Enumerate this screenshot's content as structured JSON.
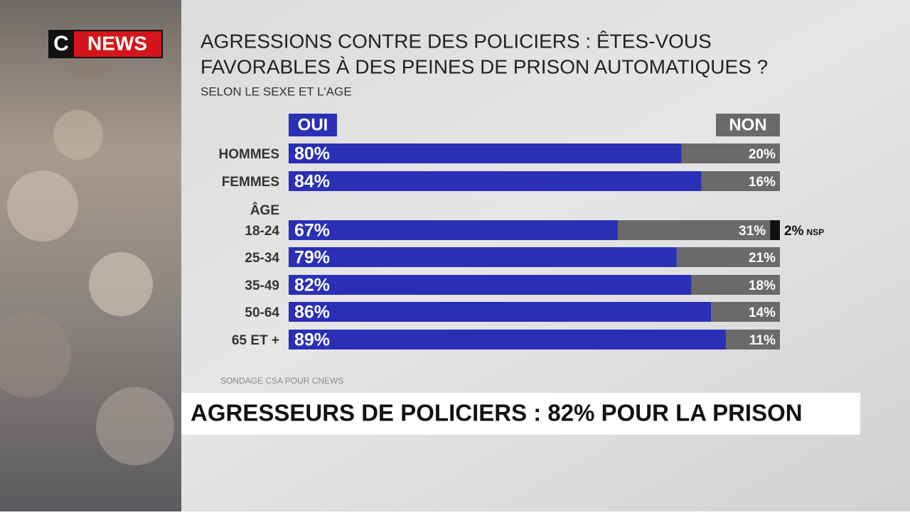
{
  "logo": {
    "c": "C",
    "news": "NEWS"
  },
  "banner": "AGRESSEURS DE POLICIERS : 82% POUR LA PRISON",
  "chart_data": {
    "type": "bar",
    "orientation": "horizontal",
    "stacked": true,
    "title": [
      "AGRESSIONS CONTRE DES POLICIERS : ÊTES-VOUS",
      "FAVORABLES À DES PEINES DE PRISON AUTOMATIQUES ?"
    ],
    "subtitle": "SELON LE SEXE ET L'AGE",
    "group_label": "ÂGE",
    "source": "SONDAGE CSA POUR CNEWS",
    "categories": [
      "HOMMES",
      "FEMMES",
      "18-24",
      "25-34",
      "35-49",
      "50-64",
      "65 ET +"
    ],
    "xlim": [
      0,
      100
    ],
    "series": [
      {
        "name": "OUI",
        "color": "#2a2fb6",
        "values": [
          80,
          84,
          67,
          79,
          82,
          86,
          89
        ],
        "value_labels": [
          "80%",
          "84%",
          "67%",
          "79%",
          "82%",
          "86%",
          "89%"
        ]
      },
      {
        "name": "NON",
        "color": "#6a6a6a",
        "values": [
          20,
          16,
          31,
          21,
          18,
          14,
          11
        ],
        "value_labels": [
          "20%",
          "16%",
          "31%",
          "21%",
          "18%",
          "14%",
          "11%"
        ]
      },
      {
        "name": "NSP",
        "color": "#111111",
        "values": [
          null,
          null,
          2,
          null,
          null,
          null,
          null
        ],
        "value_labels": [
          null,
          null,
          "2%",
          null,
          null,
          null,
          null
        ]
      }
    ]
  }
}
